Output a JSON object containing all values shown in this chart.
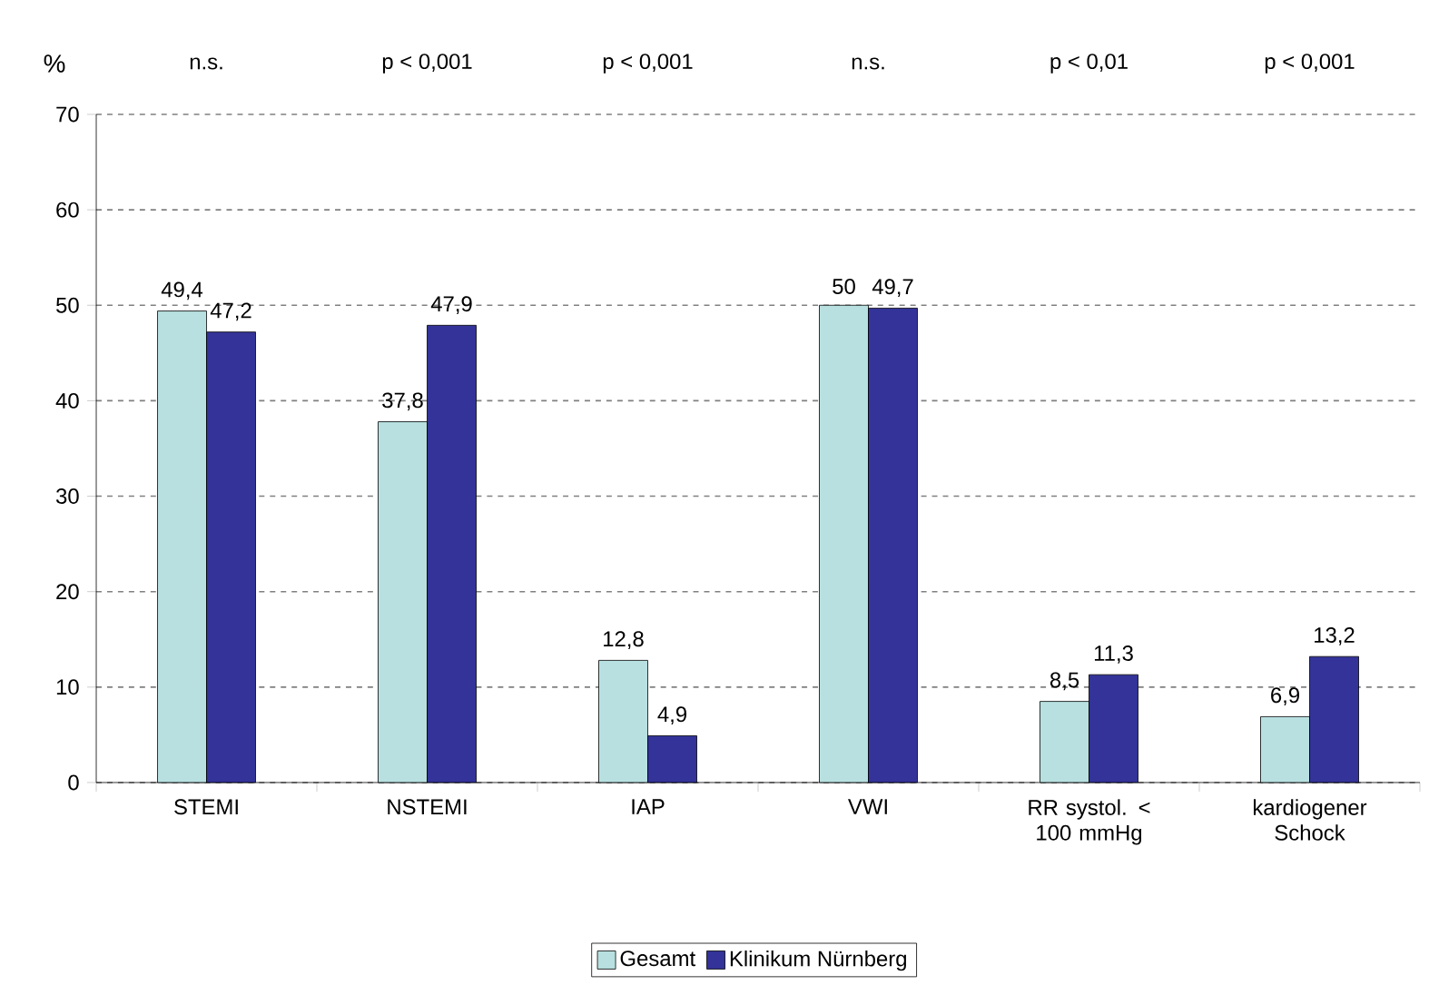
{
  "chart_data": {
    "type": "bar",
    "ylabel": "%",
    "categories": [
      "STEMI",
      "NSTEMI",
      "IAP",
      "VWI",
      "RR systol. < 100 mmHg",
      "kardiogener Schock"
    ],
    "series": [
      {
        "name": "Gesamt",
        "color": "#b8e0e0",
        "values": [
          49.4,
          37.8,
          12.8,
          50,
          8.5,
          6.9
        ],
        "value_labels": [
          "49,4",
          "37,8",
          "12,8",
          "50",
          "8,5",
          "6,9"
        ]
      },
      {
        "name": "Klinikum Nürnberg",
        "color": "#333399",
        "values": [
          47.2,
          47.9,
          4.9,
          49.7,
          11.3,
          13.2
        ],
        "value_labels": [
          "47,2",
          "47,9",
          "4,9",
          "49,7",
          "11,3",
          "13,2"
        ]
      }
    ],
    "annotations": [
      "n.s.",
      "p < 0,001",
      "p < 0,001",
      "n.s.",
      "p < 0,01",
      "p < 0,001"
    ],
    "ylim": [
      0,
      70
    ],
    "yticks": [
      0,
      10,
      20,
      30,
      40,
      50,
      60,
      70
    ],
    "grid": "y",
    "legend": "bottom"
  }
}
